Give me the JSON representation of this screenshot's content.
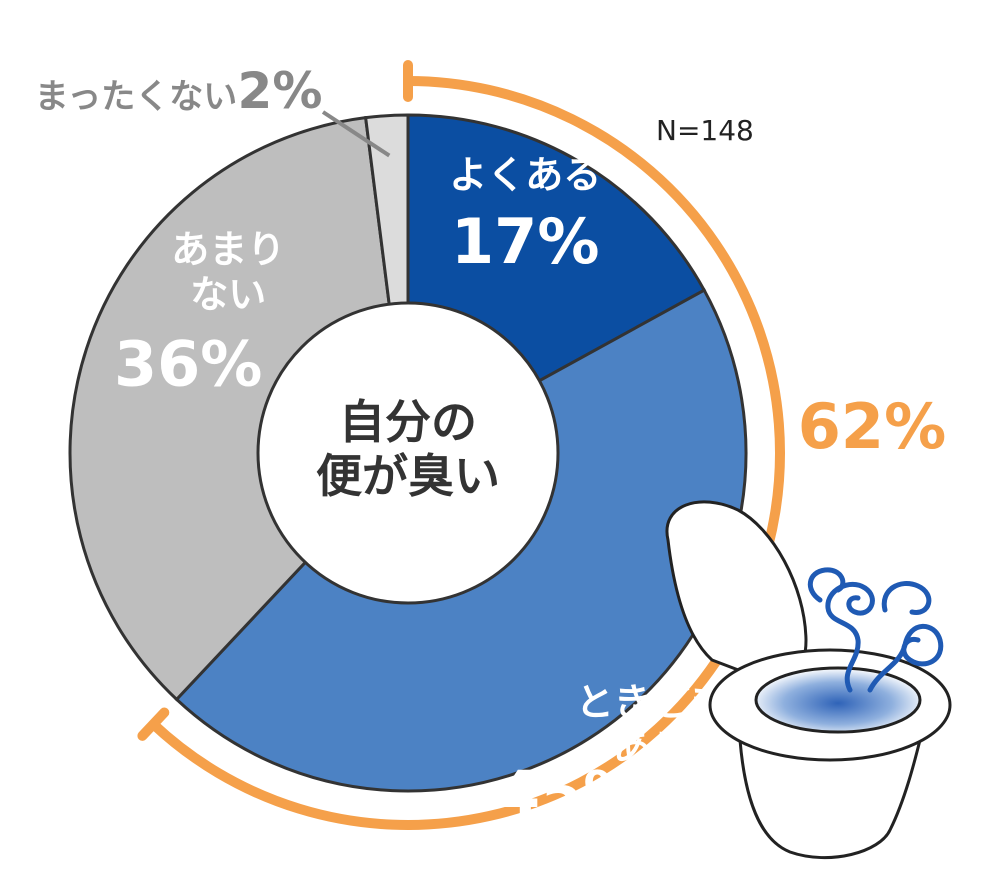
{
  "chart_data": {
    "type": "pie",
    "style": "donut",
    "center_label_lines": [
      "自分の",
      "便が臭い"
    ],
    "sample_size": "N=148",
    "slices": [
      {
        "label_lines": [
          "よくある"
        ],
        "value": 17,
        "value_text": "17%",
        "color": "#0b4ea2",
        "label_color": "#ffffff"
      },
      {
        "label_lines": [
          "ときどき",
          "ある"
        ],
        "value": 45,
        "value_text": "45%",
        "color": "#4c82c4",
        "label_color": "#ffffff"
      },
      {
        "label_lines": [
          "あまり",
          "ない"
        ],
        "value": 36,
        "value_text": "36%",
        "color": "#bebebe",
        "label_color": "#ffffff"
      },
      {
        "label_lines": [
          "まったくない"
        ],
        "value": 2,
        "value_text": "2%",
        "color": "#dcdcdc",
        "label_color": "#888888"
      }
    ],
    "bracket": {
      "value_text": "62%",
      "color": "#f5a04a"
    }
  },
  "illustration": {
    "icon": "toilet-icon",
    "odor_color": "#1f5ab4"
  }
}
